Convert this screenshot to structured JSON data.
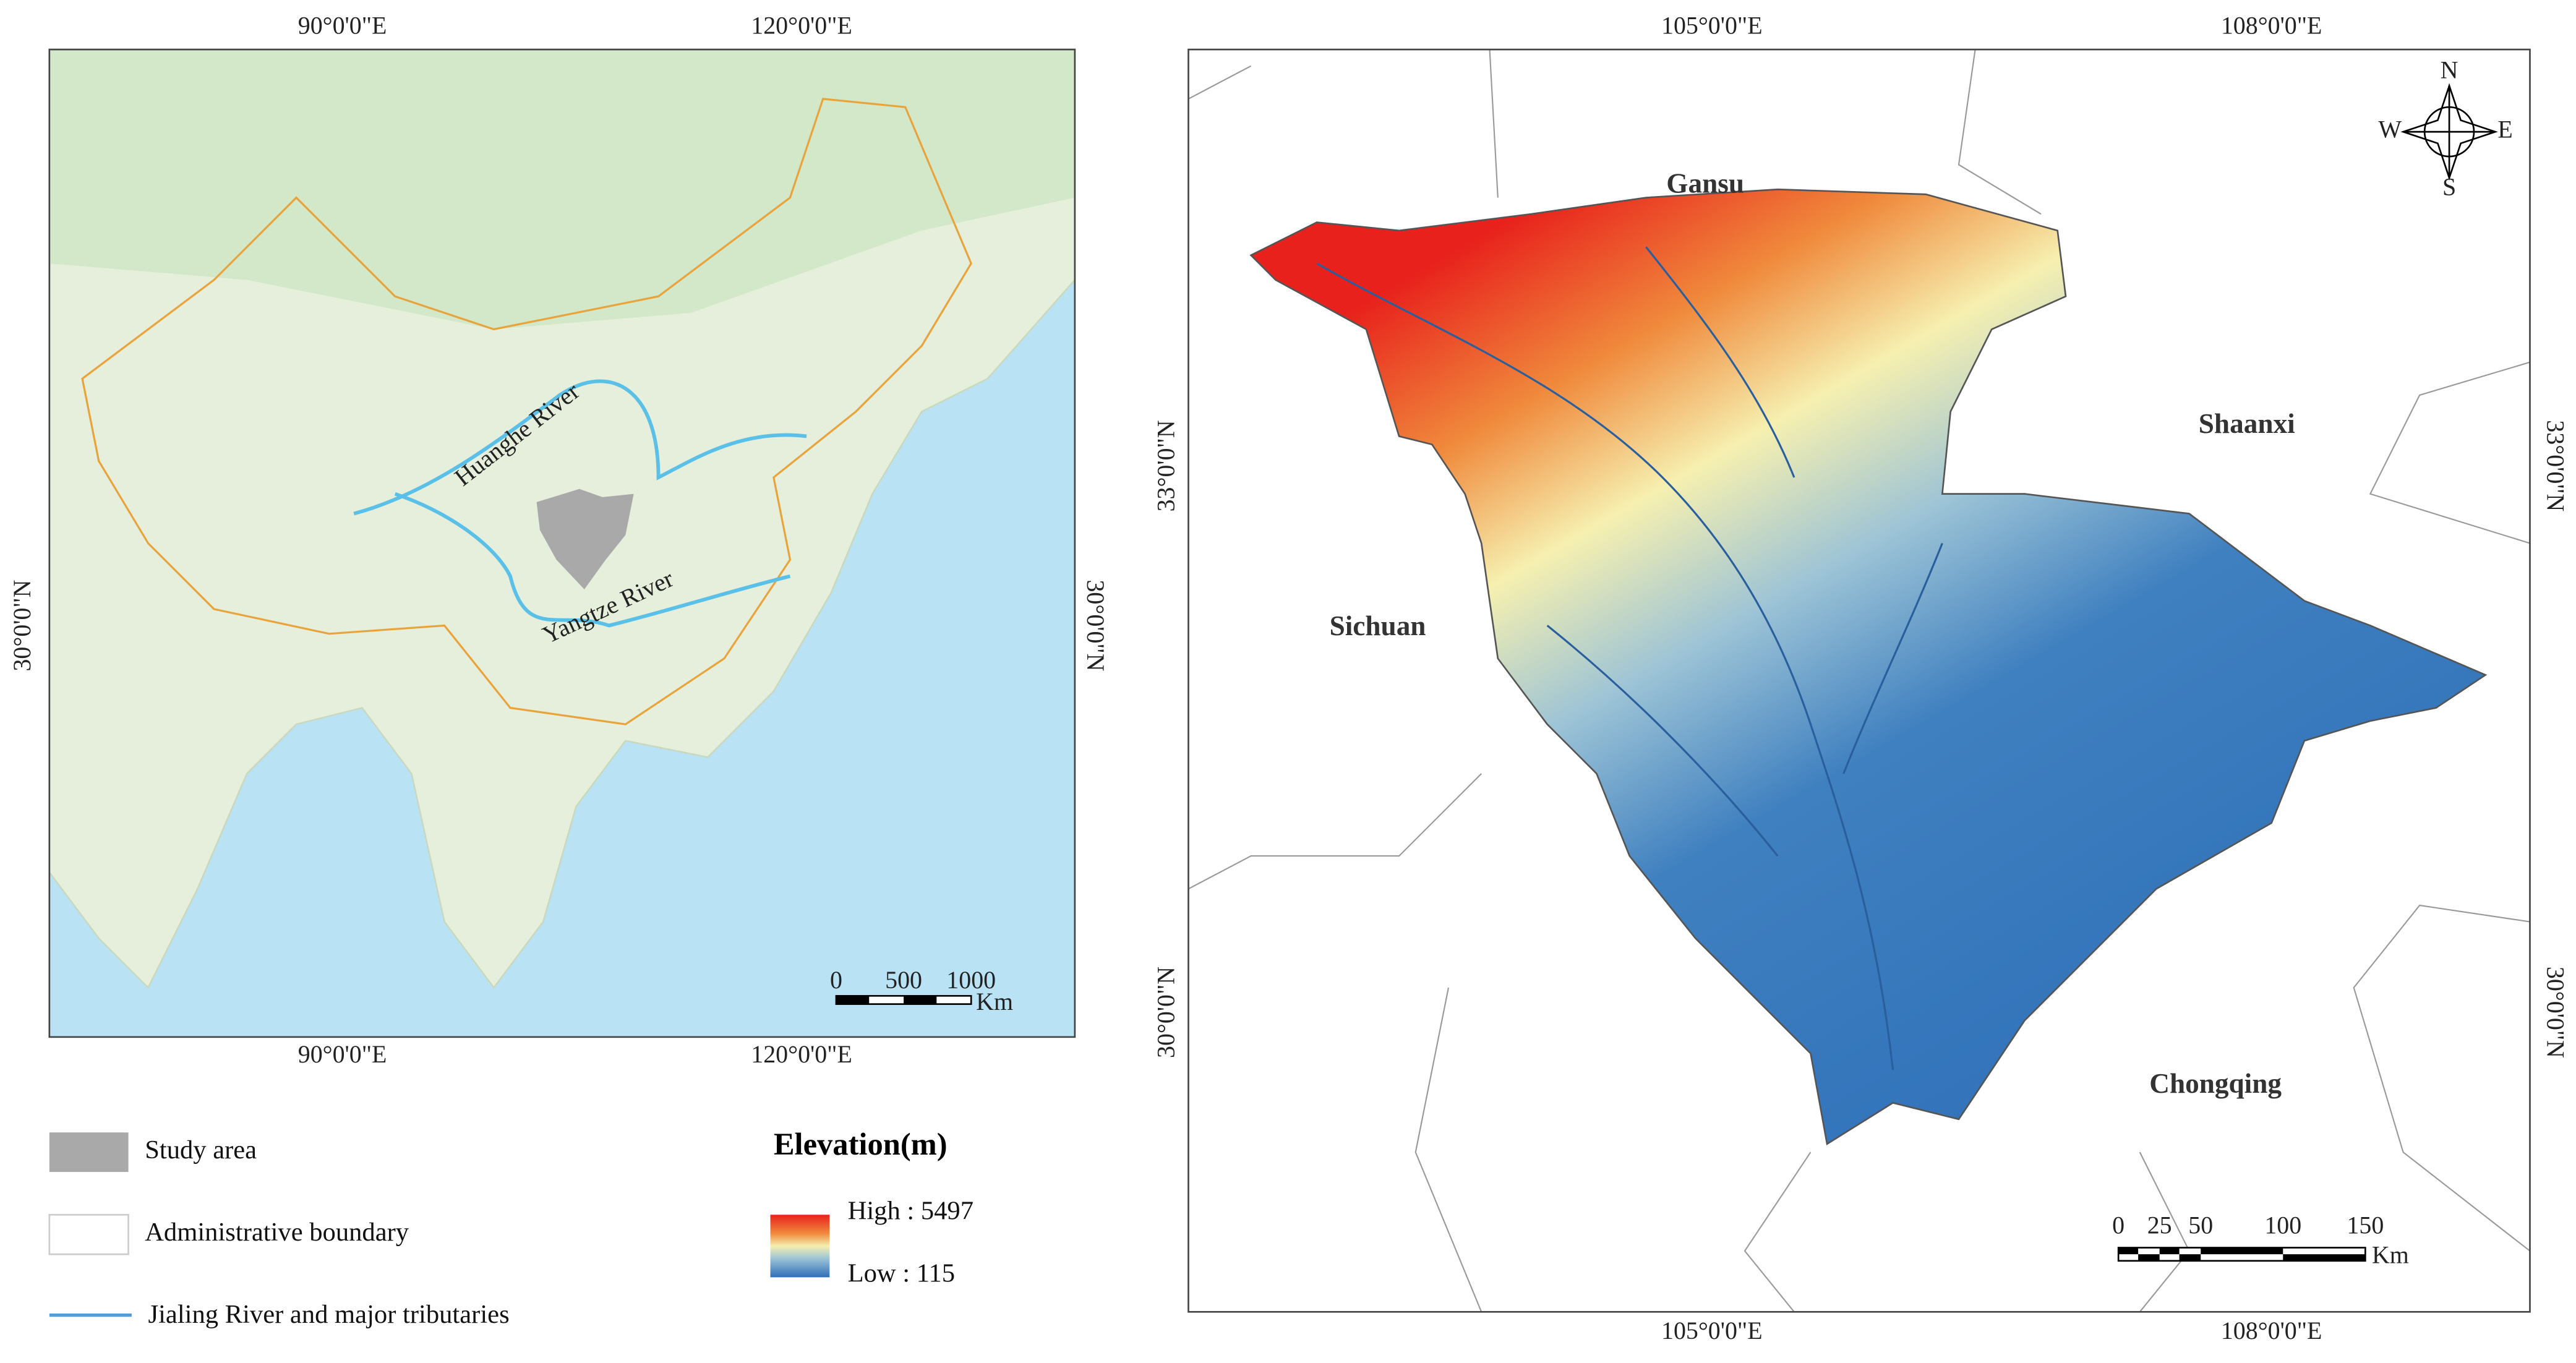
{
  "left_map": {
    "top_labels": [
      "90°0'0\"E",
      "120°0'0\"E"
    ],
    "bottom_labels": [
      "90°0'0\"E",
      "120°0'0\"E"
    ],
    "left_label": "30°0'0\"N",
    "right_label": "30°0'0\"N",
    "annotations": [
      "Huanghe River",
      "Yangtze River"
    ],
    "scale_bar": {
      "ticks": [
        "0",
        "500",
        "1000"
      ],
      "unit": "Km"
    }
  },
  "right_map": {
    "top_labels": [
      "105°0'0\"E",
      "108°0'0\"E"
    ],
    "bottom_labels": [
      "105°0'0\"E",
      "108°0'0\"E"
    ],
    "left_labels": [
      "33°0'0\"N",
      "30°0'0\"N"
    ],
    "right_labels": [
      "33°0'0\"N",
      "30°0'0\"N"
    ],
    "regions": [
      "Gansu",
      "Shaanxi",
      "Sichuan",
      "Chongqing"
    ],
    "compass": [
      "N",
      "S",
      "W",
      "E"
    ],
    "scale_bar": {
      "ticks": [
        "0",
        "25",
        "50",
        "100",
        "150"
      ],
      "unit": "Km"
    }
  },
  "legend": {
    "items": [
      "Study area",
      "Administrative boundary",
      "Jialing River and major tributaries"
    ],
    "elevation": {
      "title": "Elevation(m)",
      "high": "High : 5497",
      "low": "Low : 115"
    }
  }
}
